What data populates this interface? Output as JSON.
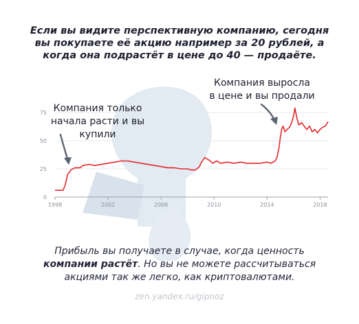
{
  "headline": {
    "line1": "Если вы видите перспективную компанию, сегодня",
    "line2": "вы покупаете её акцию например за 20 рублей, а",
    "line3": "когда она подрастёт в цене до 40 — продаёте."
  },
  "annotations": {
    "buy": {
      "line1": "Компания только",
      "line2": "начала расти и вы купили"
    },
    "sell": {
      "line1": "Компания выросла",
      "line2": "в цене и вы продали"
    }
  },
  "footer": {
    "line1": "Прибыль вы получаете в случае, когда ценность",
    "line2_bold": "компании растёт",
    "line2_rest": ". Но вы не можете рассчитываться",
    "line3": "акциями так же легко, как криптовалютами."
  },
  "credit": "zen.yandex.ru/gipnoz",
  "colors": {
    "line": "#e3262a",
    "arrow": "#5b6270",
    "grid": "#e7e9ee",
    "watermark": "#dbe4ee"
  },
  "chart_data": {
    "type": "line",
    "title": "",
    "xlabel": "",
    "ylabel": "",
    "xlim": [
      1998,
      2018.6
    ],
    "ylim": [
      0,
      75
    ],
    "x_ticks": [
      1998,
      2002,
      2006,
      2010,
      2014,
      2018
    ],
    "y_ticks": [
      0,
      25,
      50,
      75
    ],
    "grid": true,
    "series": [
      {
        "values": [
          [
            1998.0,
            6
          ],
          [
            1998.6,
            6
          ],
          [
            1998.75,
            10
          ],
          [
            1998.95,
            20
          ],
          [
            1999.2,
            24
          ],
          [
            1999.5,
            26
          ],
          [
            1999.9,
            26
          ],
          [
            2000.1,
            28
          ],
          [
            2000.6,
            29
          ],
          [
            2001.0,
            28
          ],
          [
            2001.5,
            29
          ],
          [
            2002.0,
            30
          ],
          [
            2002.5,
            31
          ],
          [
            2003.0,
            32
          ],
          [
            2003.5,
            32
          ],
          [
            2004.0,
            31
          ],
          [
            2004.5,
            30
          ],
          [
            2005.0,
            29
          ],
          [
            2005.5,
            28
          ],
          [
            2006.0,
            27
          ],
          [
            2006.5,
            26
          ],
          [
            2007.0,
            26
          ],
          [
            2007.5,
            25
          ],
          [
            2008.0,
            25
          ],
          [
            2008.3,
            24
          ],
          [
            2008.6,
            24
          ],
          [
            2008.9,
            27
          ],
          [
            2009.0,
            30
          ],
          [
            2009.3,
            35
          ],
          [
            2009.6,
            33
          ],
          [
            2009.9,
            30
          ],
          [
            2010.2,
            32
          ],
          [
            2010.5,
            30
          ],
          [
            2011.0,
            31
          ],
          [
            2011.5,
            30
          ],
          [
            2012.0,
            31
          ],
          [
            2012.5,
            30
          ],
          [
            2013.0,
            30
          ],
          [
            2013.5,
            30
          ],
          [
            2014.0,
            31
          ],
          [
            2014.3,
            30
          ],
          [
            2014.6,
            32
          ],
          [
            2014.75,
            35
          ],
          [
            2014.9,
            44
          ],
          [
            2015.0,
            53
          ],
          [
            2015.1,
            60
          ],
          [
            2015.2,
            63
          ],
          [
            2015.35,
            58
          ],
          [
            2015.5,
            60
          ],
          [
            2015.7,
            62
          ],
          [
            2015.85,
            66
          ],
          [
            2016.0,
            72
          ],
          [
            2016.1,
            79
          ],
          [
            2016.25,
            70
          ],
          [
            2016.4,
            64
          ],
          [
            2016.6,
            66
          ],
          [
            2016.8,
            63
          ],
          [
            2017.0,
            60
          ],
          [
            2017.2,
            63
          ],
          [
            2017.4,
            58
          ],
          [
            2017.6,
            60
          ],
          [
            2017.8,
            57
          ],
          [
            2018.0,
            60
          ],
          [
            2018.2,
            62
          ],
          [
            2018.4,
            63
          ],
          [
            2018.6,
            67
          ]
        ]
      }
    ]
  }
}
